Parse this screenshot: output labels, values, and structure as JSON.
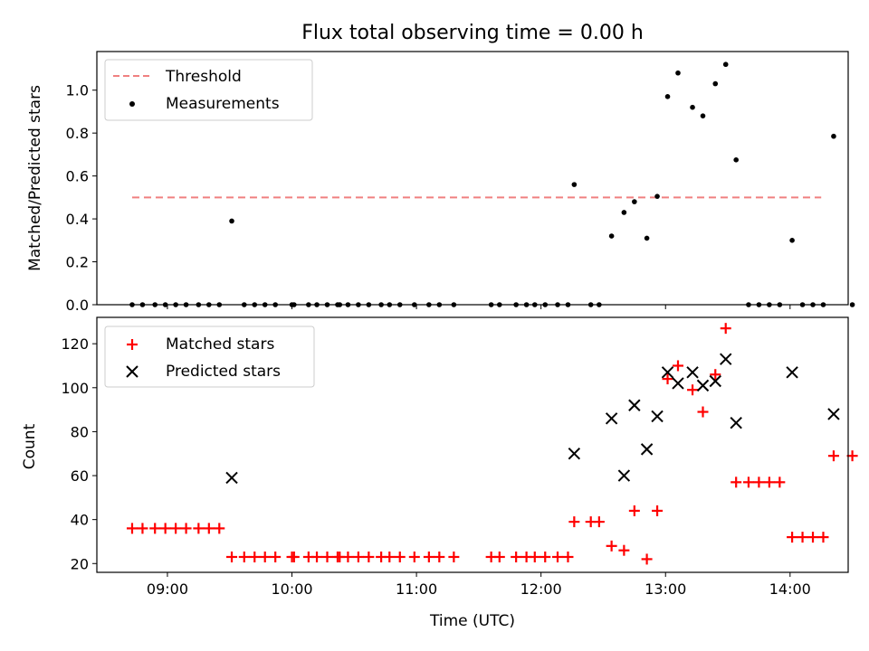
{
  "chart_data": [
    {
      "type": "scatter",
      "title": "Flux total observing time = 0.00 h",
      "xlabel": "",
      "ylabel": "Matched/Predicted stars",
      "xlim": [
        "08:26",
        "14:28"
      ],
      "ylim": [
        0,
        1.18
      ],
      "x_ticks": [
        "09:00",
        "10:00",
        "11:00",
        "12:00",
        "13:00",
        "14:00"
      ],
      "y_ticks": [
        0.0,
        0.2,
        0.4,
        0.6,
        0.8,
        1.0
      ],
      "legend": {
        "position": "top-left",
        "entries": [
          "Threshold",
          "Measurements"
        ]
      },
      "grid": false,
      "threshold": {
        "name": "Threshold",
        "value": 0.5,
        "x_start": "08:43",
        "x_end": "14:15",
        "color": "#f08080",
        "style": "dashed"
      },
      "series": [
        {
          "name": "Measurements",
          "color": "#000000",
          "marker": "dot",
          "points": [
            [
              "08:43",
              0
            ],
            [
              "08:48",
              0
            ],
            [
              "08:54",
              0
            ],
            [
              "08:59",
              0
            ],
            [
              "09:04",
              0
            ],
            [
              "09:09",
              0
            ],
            [
              "09:15",
              0
            ],
            [
              "09:20",
              0
            ],
            [
              "09:25",
              0
            ],
            [
              "09:31",
              0.39
            ],
            [
              "09:37",
              0
            ],
            [
              "09:42",
              0
            ],
            [
              "09:47",
              0
            ],
            [
              "09:52",
              0
            ],
            [
              "10:00",
              0
            ],
            [
              "10:01",
              0
            ],
            [
              "10:08",
              0
            ],
            [
              "10:12",
              0
            ],
            [
              "10:17",
              0
            ],
            [
              "10:22",
              0
            ],
            [
              "10:23",
              0
            ],
            [
              "10:27",
              0
            ],
            [
              "10:32",
              0
            ],
            [
              "10:37",
              0
            ],
            [
              "10:43",
              0
            ],
            [
              "10:47",
              0
            ],
            [
              "10:52",
              0
            ],
            [
              "10:59",
              0
            ],
            [
              "11:06",
              0
            ],
            [
              "11:11",
              0
            ],
            [
              "11:18",
              0
            ],
            [
              "11:36",
              0
            ],
            [
              "11:40",
              0
            ],
            [
              "11:48",
              0
            ],
            [
              "11:53",
              0
            ],
            [
              "11:57",
              0
            ],
            [
              "12:02",
              0
            ],
            [
              "12:08",
              0
            ],
            [
              "12:13",
              0
            ],
            [
              "12:16",
              0.56
            ],
            [
              "12:24",
              0
            ],
            [
              "12:28",
              0
            ],
            [
              "12:34",
              0.32
            ],
            [
              "12:40",
              0.43
            ],
            [
              "12:45",
              0.48
            ],
            [
              "12:51",
              0.31
            ],
            [
              "12:56",
              0.505
            ],
            [
              "13:01",
              0.97
            ],
            [
              "13:06",
              1.08
            ],
            [
              "13:13",
              0.92
            ],
            [
              "13:18",
              0.88
            ],
            [
              "13:24",
              1.03
            ],
            [
              "13:29",
              1.12
            ],
            [
              "13:34",
              0.675
            ],
            [
              "13:40",
              0
            ],
            [
              "13:45",
              0
            ],
            [
              "13:50",
              0
            ],
            [
              "13:55",
              0
            ],
            [
              "14:01",
              0.3
            ],
            [
              "14:06",
              0
            ],
            [
              "14:11",
              0
            ],
            [
              "14:16",
              0
            ],
            [
              "14:21",
              0.785
            ],
            [
              "14:30",
              0
            ]
          ]
        }
      ]
    },
    {
      "type": "scatter",
      "title": "",
      "xlabel": "Time (UTC)",
      "ylabel": "Count",
      "xlim": [
        "08:26",
        "14:28"
      ],
      "ylim": [
        16,
        132
      ],
      "x_ticks": [
        "09:00",
        "10:00",
        "11:00",
        "12:00",
        "13:00",
        "14:00"
      ],
      "y_ticks": [
        20,
        40,
        60,
        80,
        100,
        120
      ],
      "legend": {
        "position": "top-left",
        "entries": [
          "Matched stars",
          "Predicted stars"
        ]
      },
      "grid": false,
      "series": [
        {
          "name": "Matched stars",
          "color": "#ff0000",
          "marker": "plus",
          "points": [
            [
              "08:43",
              36
            ],
            [
              "08:48",
              36
            ],
            [
              "08:54",
              36
            ],
            [
              "08:59",
              36
            ],
            [
              "09:04",
              36
            ],
            [
              "09:09",
              36
            ],
            [
              "09:15",
              36
            ],
            [
              "09:20",
              36
            ],
            [
              "09:25",
              36
            ],
            [
              "09:31",
              23
            ],
            [
              "09:37",
              23
            ],
            [
              "09:42",
              23
            ],
            [
              "09:47",
              23
            ],
            [
              "09:52",
              23
            ],
            [
              "10:00",
              23
            ],
            [
              "10:01",
              23
            ],
            [
              "10:08",
              23
            ],
            [
              "10:12",
              23
            ],
            [
              "10:17",
              23
            ],
            [
              "10:22",
              23
            ],
            [
              "10:23",
              23
            ],
            [
              "10:27",
              23
            ],
            [
              "10:32",
              23
            ],
            [
              "10:37",
              23
            ],
            [
              "10:43",
              23
            ],
            [
              "10:47",
              23
            ],
            [
              "10:52",
              23
            ],
            [
              "10:59",
              23
            ],
            [
              "11:06",
              23
            ],
            [
              "11:11",
              23
            ],
            [
              "11:18",
              23
            ],
            [
              "11:36",
              23
            ],
            [
              "11:40",
              23
            ],
            [
              "11:48",
              23
            ],
            [
              "11:53",
              23
            ],
            [
              "11:57",
              23
            ],
            [
              "12:02",
              23
            ],
            [
              "12:08",
              23
            ],
            [
              "12:13",
              23
            ],
            [
              "12:16",
              39
            ],
            [
              "12:24",
              39
            ],
            [
              "12:28",
              39
            ],
            [
              "12:34",
              28
            ],
            [
              "12:40",
              26
            ],
            [
              "12:45",
              44
            ],
            [
              "12:51",
              22
            ],
            [
              "12:56",
              44
            ],
            [
              "13:01",
              104
            ],
            [
              "13:06",
              110
            ],
            [
              "13:13",
              99
            ],
            [
              "13:18",
              89
            ],
            [
              "13:24",
              106
            ],
            [
              "13:29",
              127
            ],
            [
              "13:34",
              57
            ],
            [
              "13:40",
              57
            ],
            [
              "13:45",
              57
            ],
            [
              "13:50",
              57
            ],
            [
              "13:55",
              57
            ],
            [
              "14:01",
              32
            ],
            [
              "14:06",
              32
            ],
            [
              "14:11",
              32
            ],
            [
              "14:16",
              32
            ],
            [
              "14:21",
              69
            ],
            [
              "14:30",
              69
            ]
          ]
        },
        {
          "name": "Predicted stars",
          "color": "#000000",
          "marker": "x",
          "points": [
            [
              "09:31",
              59
            ],
            [
              "12:16",
              70
            ],
            [
              "12:34",
              86
            ],
            [
              "12:40",
              60
            ],
            [
              "12:45",
              92
            ],
            [
              "12:51",
              72
            ],
            [
              "12:56",
              87
            ],
            [
              "13:01",
              107
            ],
            [
              "13:06",
              102
            ],
            [
              "13:13",
              107
            ],
            [
              "13:18",
              101
            ],
            [
              "13:24",
              103
            ],
            [
              "13:29",
              113
            ],
            [
              "13:34",
              84
            ],
            [
              "14:01",
              107
            ],
            [
              "14:21",
              88
            ]
          ]
        }
      ]
    }
  ]
}
